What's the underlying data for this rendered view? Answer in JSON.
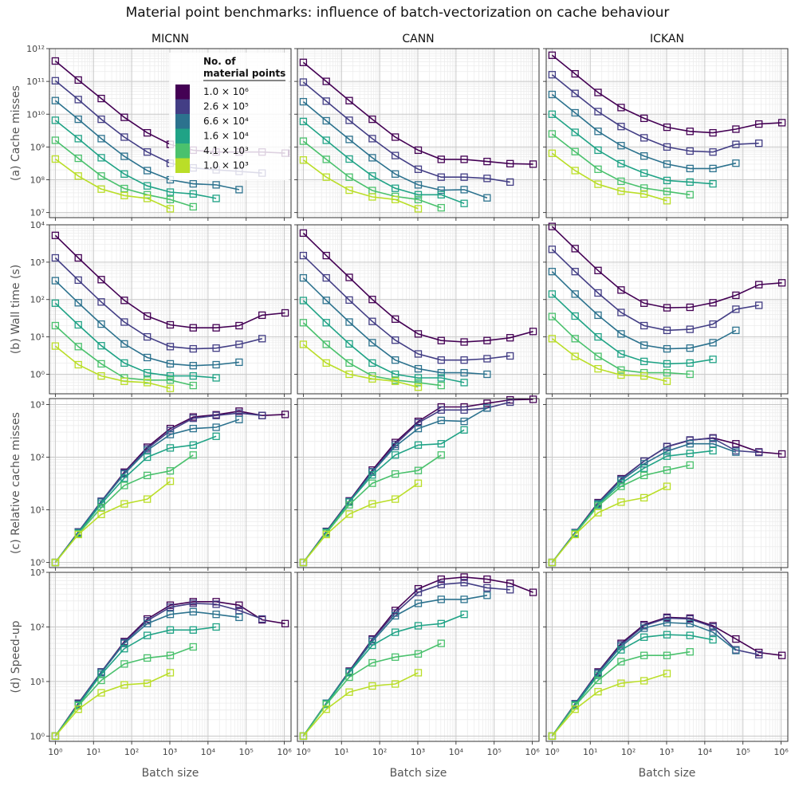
{
  "figure": {
    "title": "Material point benchmarks: influence of batch-vectorization on cache behaviour",
    "columns": [
      "MICNN",
      "CANN",
      "ICKAN"
    ],
    "rows": [
      "(a) Cache misses",
      "(b) Wall time (s)",
      "(c) Relative cache misses",
      "(d) Speed-up"
    ],
    "xlabel": "Batch size",
    "legend": {
      "title_line1": "No. of",
      "title_line2": "material points",
      "entries": [
        "1.0 × 10⁶",
        "2.6 × 10⁵",
        "6.6 × 10⁴",
        "1.6 × 10⁴",
        "4.1 × 10³",
        "1.0 × 10³"
      ],
      "colors": [
        "#440154",
        "#433e85",
        "#2c728e",
        "#20a386",
        "#4ac16d",
        "#bade28"
      ],
      "placement": "top-left panel, upper-middle"
    }
  },
  "chart_data": {
    "type": "line",
    "scale": "log-log",
    "markers": "open squares",
    "grid": "on (major and minor)",
    "xlim": [
      0.7,
      1500000
    ],
    "x_ticks": [
      "10⁰",
      "10¹",
      "10²",
      "10³",
      "10⁴",
      "10⁵",
      "10⁶"
    ],
    "series_names": [
      "1.0 × 10⁶",
      "2.6 × 10⁵",
      "6.6 × 10⁴",
      "1.6 × 10⁴",
      "4.1 × 10³",
      "1.0 × 10³"
    ],
    "batch_sizes": [
      [
        1,
        4,
        16,
        64,
        256,
        1024,
        4096,
        16384,
        65536,
        262144,
        1048576
      ],
      [
        1,
        4,
        16,
        64,
        256,
        1024,
        4096,
        16384,
        65536,
        262144
      ],
      [
        1,
        4,
        16,
        64,
        256,
        1024,
        4096,
        16384,
        65536
      ],
      [
        1,
        4,
        16,
        64,
        256,
        1024,
        4096,
        16384
      ],
      [
        1,
        4,
        16,
        64,
        256,
        1024,
        4096
      ],
      [
        1,
        4,
        16,
        64,
        256,
        1024
      ]
    ],
    "panels": [
      {
        "row": "(a) Cache misses",
        "col": "MICNN",
        "ylim": [
          7000000,
          1000000000000
        ],
        "y_ticks": [
          "10⁷",
          "10⁸",
          "10⁹",
          "10¹⁰",
          "10¹¹",
          "10¹²"
        ],
        "series": [
          [
            420000000000.0,
            110000000000.0,
            30000000000.0,
            8000000000.0,
            2700000000.0,
            1200000000.0,
            800000000.0,
            700000000.0,
            700000000.0,
            700000000.0,
            650000000.0
          ],
          [
            105000000000.0,
            28000000000.0,
            7000000000.0,
            2000000000.0,
            700000000.0,
            320000000.0,
            230000000.0,
            200000000.0,
            180000000.0,
            160000000.0
          ],
          [
            26000000000.0,
            7000000000.0,
            1800000000.0,
            520000000.0,
            190000000.0,
            100000000.0,
            75000000.0,
            70000000.0,
            50000000.0
          ],
          [
            6500000000.0,
            1800000000.0,
            470000000.0,
            150000000.0,
            65000000.0,
            42000000.0,
            37000000.0,
            27000000.0
          ],
          [
            1600000000.0,
            450000000.0,
            130000000.0,
            54000000.0,
            35000000.0,
            25000000.0,
            15000000.0
          ],
          [
            430000000.0,
            130000000.0,
            52000000.0,
            33000000.0,
            27000000.0,
            13000000.0
          ]
        ]
      },
      {
        "row": "(a) Cache misses",
        "col": "CANN",
        "ylim": [
          7000000,
          1000000000000
        ],
        "y_ticks": [
          "10⁷",
          "10⁸",
          "10⁹",
          "10¹⁰",
          "10¹¹",
          "10¹²"
        ],
        "series": [
          [
            380000000000.0,
            100000000000.0,
            26000000000.0,
            7000000000.0,
            2000000000.0,
            800000000.0,
            420000000.0,
            420000000.0,
            360000000.0,
            310000000.0,
            300000000.0
          ],
          [
            95000000000.0,
            25000000000.0,
            6500000000.0,
            1800000000.0,
            550000000.0,
            210000000.0,
            120000000.0,
            120000000.0,
            110000000.0,
            85000000.0
          ],
          [
            24000000000.0,
            6300000000.0,
            1700000000.0,
            470000000.0,
            150000000.0,
            70000000.0,
            48000000.0,
            50000000.0,
            28000000.0
          ],
          [
            6000000000.0,
            1600000000.0,
            430000000.0,
            130000000.0,
            55000000.0,
            35000000.0,
            35000000.0,
            19000000.0
          ],
          [
            1500000000.0,
            420000000.0,
            120000000.0,
            47000000.0,
            31000000.0,
            25000000.0,
            14000000.0
          ],
          [
            400000000.0,
            120000000.0,
            48000000.0,
            30000000.0,
            25000000.0,
            13000000.0
          ]
        ]
      },
      {
        "row": "(a) Cache misses",
        "col": "ICKAN",
        "ylim": [
          7000000,
          1000000000000
        ],
        "y_ticks": [
          "10⁷",
          "10⁸",
          "10⁹",
          "10¹⁰",
          "10¹¹",
          "10¹²"
        ],
        "series": [
          [
            630000000000.0,
            170000000000.0,
            46000000000.0,
            16000000000.0,
            7500000000.0,
            4000000000.0,
            3000000000.0,
            2700000000.0,
            3500000000.0,
            5000000000.0,
            5500000000.0
          ],
          [
            160000000000.0,
            43000000000.0,
            12000000000.0,
            4200000000.0,
            1900000000.0,
            1000000000.0,
            750000000.0,
            700000000.0,
            1200000000.0,
            1300000000.0
          ],
          [
            40000000000.0,
            11000000000.0,
            3000000000.0,
            1100000000.0,
            530000000.0,
            300000000.0,
            220000000.0,
            220000000.0,
            320000000.0
          ],
          [
            10000000000.0,
            2800000000.0,
            800000000.0,
            310000000.0,
            160000000.0,
            95000000.0,
            85000000.0,
            75000000.0
          ],
          [
            2500000000.0,
            720000000.0,
            210000000.0,
            90000000.0,
            56000000.0,
            44000000.0,
            35000000.0
          ],
          [
            640000000.0,
            190000000.0,
            73000000.0,
            45000000.0,
            37000000.0,
            23000000.0
          ]
        ]
      },
      {
        "row": "(b) Wall time (s)",
        "col": "MICNN",
        "ylim": [
          0.3,
          10000
        ],
        "y_ticks": [
          "10⁰",
          "10¹",
          "10²",
          "10³",
          "10⁴"
        ],
        "series": [
          [
            5200,
            1300,
            340,
            95,
            36,
            21,
            17.5,
            17.5,
            20,
            38,
            44
          ],
          [
            1300,
            330,
            86,
            25,
            10,
            5.5,
            4.8,
            5,
            6.3,
            9
          ],
          [
            320,
            82,
            22,
            6.5,
            2.8,
            1.9,
            1.7,
            1.8,
            2.1
          ],
          [
            80,
            21,
            5.8,
            2,
            1.1,
            0.9,
            0.9,
            0.8
          ],
          [
            20,
            5.5,
            1.9,
            0.8,
            0.7,
            0.7,
            0.5
          ],
          [
            5.7,
            1.8,
            0.9,
            0.65,
            0.6,
            0.42
          ]
        ]
      },
      {
        "row": "(b) Wall time (s)",
        "col": "CANN",
        "ylim": [
          0.3,
          10000
        ],
        "y_ticks": [
          "10⁰",
          "10¹",
          "10²",
          "10³",
          "10⁴"
        ],
        "series": [
          [
            6000,
            1500,
            390,
            100,
            30,
            12,
            8,
            7.3,
            8,
            9.5,
            14
          ],
          [
            1500,
            380,
            97,
            26,
            8.2,
            3.5,
            2.4,
            2.4,
            2.6,
            3.1
          ],
          [
            380,
            95,
            25,
            7,
            2.4,
            1.4,
            1.1,
            1.1,
            1
          ],
          [
            94,
            24,
            6.5,
            2,
            1,
            0.8,
            0.8,
            0.6
          ],
          [
            24,
            6.3,
            2,
            0.9,
            0.7,
            0.6,
            0.5
          ],
          [
            6.3,
            2,
            1,
            0.75,
            0.65,
            0.45
          ]
        ]
      },
      {
        "row": "(b) Wall time (s)",
        "col": "ICKAN",
        "ylim": [
          0.3,
          10000
        ],
        "y_ticks": [
          "10⁰",
          "10¹",
          "10²",
          "10³",
          "10⁴"
        ],
        "series": [
          [
            9000,
            2300,
            600,
            180,
            80,
            60,
            62,
            82,
            130,
            250,
            280
          ],
          [
            2200,
            560,
            150,
            45,
            20,
            15,
            16,
            22,
            55,
            70
          ],
          [
            560,
            140,
            38,
            12,
            6,
            4.8,
            5,
            7,
            15
          ],
          [
            140,
            36,
            10,
            3.5,
            2.2,
            1.9,
            2,
            2.5
          ],
          [
            35,
            9,
            3,
            1.3,
            1.1,
            1.1,
            1
          ],
          [
            9,
            3,
            1.4,
            0.95,
            0.9,
            0.65
          ]
        ]
      },
      {
        "row": "(c) Relative cache misses",
        "col": "MICNN",
        "ylim": [
          0.8,
          1300
        ],
        "y_ticks": [
          "10⁰",
          "10¹",
          "10²",
          "10³"
        ],
        "series": [
          [
            1,
            3.8,
            14.5,
            52,
            155,
            350,
            580,
            640,
            750,
            620,
            650
          ],
          [
            1,
            3.8,
            14.5,
            50,
            145,
            320,
            550,
            620,
            690,
            620
          ],
          [
            1,
            3.7,
            14,
            48,
            135,
            270,
            350,
            370,
            520
          ],
          [
            1,
            3.6,
            13,
            40,
            100,
            150,
            170,
            250
          ],
          [
            1,
            3.5,
            11,
            29,
            45,
            55,
            110
          ],
          [
            1,
            3.4,
            8.2,
            13,
            16,
            35
          ]
        ]
      },
      {
        "row": "(c) Relative cache misses",
        "col": "CANN",
        "ylim": [
          0.8,
          1300
        ],
        "y_ticks": [
          "10⁰",
          "10¹",
          "10²",
          "10³"
        ],
        "series": [
          [
            1,
            3.9,
            14.8,
            57,
            190,
            480,
            900,
            900,
            1060,
            1230,
            1260
          ],
          [
            1,
            3.8,
            14.5,
            53,
            175,
            450,
            790,
            790,
            860,
            1110
          ],
          [
            1,
            3.8,
            14,
            52,
            160,
            350,
            500,
            480,
            860
          ],
          [
            1,
            3.7,
            14,
            46,
            110,
            170,
            180,
            330
          ],
          [
            1,
            3.6,
            12.5,
            32,
            48,
            56,
            110
          ],
          [
            1,
            3.4,
            8.3,
            13,
            16,
            32
          ]
        ]
      },
      {
        "row": "(c) Relative cache misses",
        "col": "ICKAN",
        "ylim": [
          0.8,
          1300
        ],
        "y_ticks": [
          "10⁰",
          "10¹",
          "10²",
          "10³"
        ],
        "series": [
          [
            1,
            3.7,
            13.7,
            39,
            84,
            158,
            210,
            233,
            180,
            126,
            115
          ],
          [
            1,
            3.7,
            13.3,
            38,
            84,
            160,
            213,
            228,
            133,
            123
          ],
          [
            1,
            3.6,
            13,
            36,
            75,
            130,
            180,
            180,
            125
          ],
          [
            1,
            3.6,
            12.5,
            32,
            62,
            105,
            118,
            133
          ],
          [
            1,
            3.5,
            11.8,
            28,
            45,
            57,
            71
          ],
          [
            1,
            3.4,
            8.8,
            14,
            17,
            28
          ]
        ]
      },
      {
        "row": "(d) Speed-up",
        "col": "MICNN",
        "ylim": [
          0.8,
          1000
        ],
        "y_ticks": [
          "10⁰",
          "10¹",
          "10²",
          "10³"
        ],
        "series": [
          [
            1,
            4,
            15,
            54,
            140,
            250,
            290,
            290,
            250,
            135,
            115
          ],
          [
            1,
            3.9,
            15,
            52,
            130,
            230,
            270,
            260,
            200,
            140
          ],
          [
            1,
            3.8,
            14.5,
            50,
            115,
            170,
            190,
            170,
            150
          ],
          [
            1,
            3.7,
            13.5,
            40,
            70,
            88,
            88,
            100
          ],
          [
            1,
            3.6,
            10.5,
            21,
            27,
            30,
            43
          ],
          [
            1,
            3.1,
            6.2,
            8.7,
            9.3,
            14.5
          ]
        ]
      },
      {
        "row": "(d) Speed-up",
        "col": "CANN",
        "ylim": [
          0.8,
          1000
        ],
        "y_ticks": [
          "10⁰",
          "10¹",
          "10²",
          "10³"
        ],
        "series": [
          [
            1,
            4,
            15.5,
            60,
            200,
            500,
            750,
            820,
            750,
            630,
            430
          ],
          [
            1,
            4,
            15,
            58,
            180,
            430,
            600,
            650,
            520,
            480
          ],
          [
            1,
            4,
            15,
            54,
            160,
            270,
            320,
            320,
            380
          ],
          [
            1,
            3.9,
            14.5,
            46,
            80,
            105,
            115,
            170
          ],
          [
            1,
            3.8,
            12,
            22,
            28,
            32,
            50
          ],
          [
            1,
            3.1,
            6.4,
            8.3,
            9,
            14.5
          ]
        ]
      },
      {
        "row": "(d) Speed-up",
        "col": "ICKAN",
        "ylim": [
          0.8,
          1000
        ],
        "y_ticks": [
          "10⁰",
          "10¹",
          "10²",
          "10³"
        ],
        "series": [
          [
            1,
            3.9,
            15,
            50,
            110,
            150,
            145,
            105,
            60,
            34,
            30
          ],
          [
            1,
            3.9,
            14.5,
            47,
            105,
            145,
            140,
            100,
            38,
            31
          ],
          [
            1,
            3.8,
            14,
            44,
            95,
            120,
            115,
            80,
            37
          ],
          [
            1,
            3.7,
            13,
            38,
            65,
            72,
            70,
            58
          ],
          [
            1,
            3.6,
            10.5,
            23,
            30,
            30,
            35
          ],
          [
            1,
            3.1,
            6.5,
            9.3,
            10.3,
            14
          ]
        ]
      }
    ]
  }
}
